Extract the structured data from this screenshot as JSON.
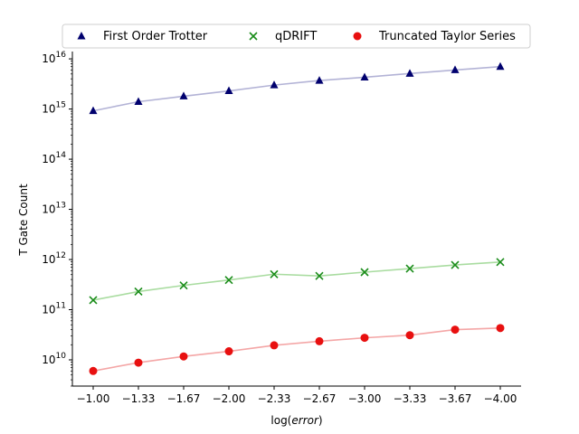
{
  "chart_data": {
    "type": "scatter",
    "categories": [
      "-1.00",
      "-1.33",
      "-1.67",
      "-2.00",
      "-2.33",
      "-2.67",
      "-3.00",
      "-3.33",
      "-3.67",
      "-4.00"
    ],
    "xlabel_prefix": "log(",
    "xlabel_var": "error",
    "xlabel_suffix": ")",
    "ylabel": "T Gate Count",
    "yscale": "log",
    "ylim": [
      3000000000.0,
      1.4e+16
    ],
    "yticks": [
      10,
      11,
      12,
      13,
      14,
      15,
      16
    ],
    "grid": false,
    "legend_position": "top",
    "series": [
      {
        "name": "First Order Trotter",
        "marker": "triangle",
        "marker_color": "#00006e",
        "line_color": "#b3b3d6",
        "values": [
          920000000000000.0,
          1400000000000000.0,
          1800000000000000.0,
          2300000000000000.0,
          3000000000000000.0,
          3700000000000000.0,
          4300000000000000.0,
          5100000000000000.0,
          6000000000000000.0,
          7000000000000000.0
        ]
      },
      {
        "name": "qDRIFT",
        "marker": "x",
        "marker_color": "#1a8c1a",
        "line_color": "#a9dca0",
        "values": [
          155000000000.0,
          230000000000.0,
          305000000000.0,
          390000000000.0,
          510000000000.0,
          470000000000.0,
          560000000000.0,
          660000000000.0,
          780000000000.0,
          890000000000.0
        ]
      },
      {
        "name": "Truncated Taylor Series",
        "marker": "circle",
        "marker_color": "#e81010",
        "line_color": "#f4a6a6",
        "values": [
          6000000000.0,
          8800000000.0,
          11700000000.0,
          14800000000.0,
          19500000000.0,
          23500000000.0,
          27500000000.0,
          31000000000.0,
          40000000000.0,
          43000000000.0
        ]
      }
    ]
  }
}
